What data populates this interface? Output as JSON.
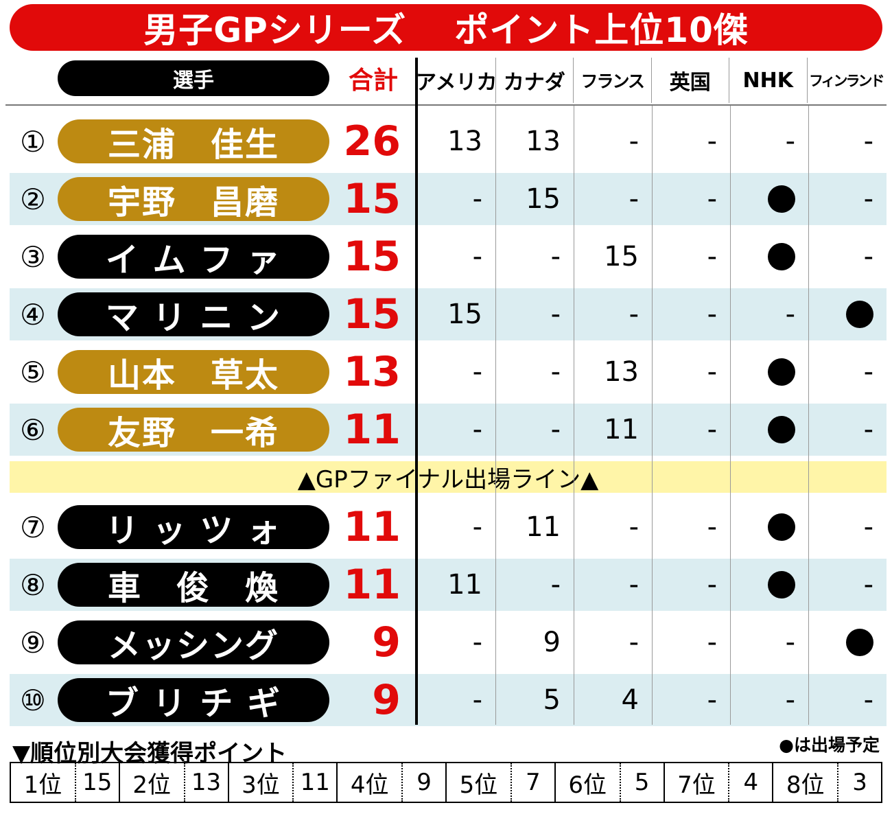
{
  "title": {
    "left": "男子GPシリーズ",
    "right": "ポイント上位10傑"
  },
  "header": {
    "player": "選手",
    "total": "合計",
    "events": [
      "アメリカ",
      "カナダ",
      "フランス",
      "英国",
      "NHK",
      "フィンランド"
    ]
  },
  "final_line": "▲GPファイナル出場ライン▲",
  "rows": [
    {
      "rank": "①",
      "name": "三浦　佳生",
      "style": "gold",
      "total": "26",
      "cells": [
        "13",
        "13",
        "-",
        "-",
        "-",
        "-"
      ]
    },
    {
      "rank": "②",
      "name": "宇野　昌磨",
      "style": "gold",
      "total": "15",
      "cells": [
        "-",
        "15",
        "-",
        "-",
        "●",
        "-"
      ]
    },
    {
      "rank": "③",
      "name": "イ ム フ ァ",
      "style": "black",
      "total": "15",
      "cells": [
        "-",
        "-",
        "15",
        "-",
        "●",
        "-"
      ]
    },
    {
      "rank": "④",
      "name": "マ リ ニ ン",
      "style": "black",
      "total": "15",
      "cells": [
        "15",
        "-",
        "-",
        "-",
        "-",
        "●"
      ]
    },
    {
      "rank": "⑤",
      "name": "山本　草太",
      "style": "gold",
      "total": "13",
      "cells": [
        "-",
        "-",
        "13",
        "-",
        "●",
        "-"
      ]
    },
    {
      "rank": "⑥",
      "name": "友野　一希",
      "style": "gold",
      "total": "11",
      "cells": [
        "-",
        "-",
        "11",
        "-",
        "●",
        "-"
      ]
    },
    {
      "rank": "⑦",
      "name": "リ ッ ツ ォ",
      "style": "black",
      "total": "11",
      "cells": [
        "-",
        "11",
        "-",
        "-",
        "●",
        "-"
      ]
    },
    {
      "rank": "⑧",
      "name": "車　俊　煥",
      "style": "black",
      "total": "11",
      "cells": [
        "11",
        "-",
        "-",
        "-",
        "●",
        "-"
      ]
    },
    {
      "rank": "⑨",
      "name": "メッシング",
      "style": "black",
      "total": "9",
      "cells": [
        "-",
        "9",
        "-",
        "-",
        "-",
        "●"
      ]
    },
    {
      "rank": "⑩",
      "name": "ブ リ チ ギ",
      "style": "black",
      "total": "9",
      "cells": [
        "-",
        "5",
        "4",
        "-",
        "-",
        "-"
      ]
    }
  ],
  "points_title": "▼順位別大会獲得ポイント",
  "legend": "●は出場予定",
  "points_table": [
    {
      "place": "1位",
      "points": "15"
    },
    {
      "place": "2位",
      "points": "13"
    },
    {
      "place": "3位",
      "points": "11"
    },
    {
      "place": "4位",
      "points": "9"
    },
    {
      "place": "5位",
      "points": "7"
    },
    {
      "place": "6位",
      "points": "5"
    },
    {
      "place": "7位",
      "points": "4"
    },
    {
      "place": "8位",
      "points": "3"
    }
  ],
  "colors": {
    "accent_red": "#e10a0a",
    "gold_pill": "#bd8a12",
    "row_shade": "#dbedf1",
    "final_line_bg": "#fff5a8"
  }
}
